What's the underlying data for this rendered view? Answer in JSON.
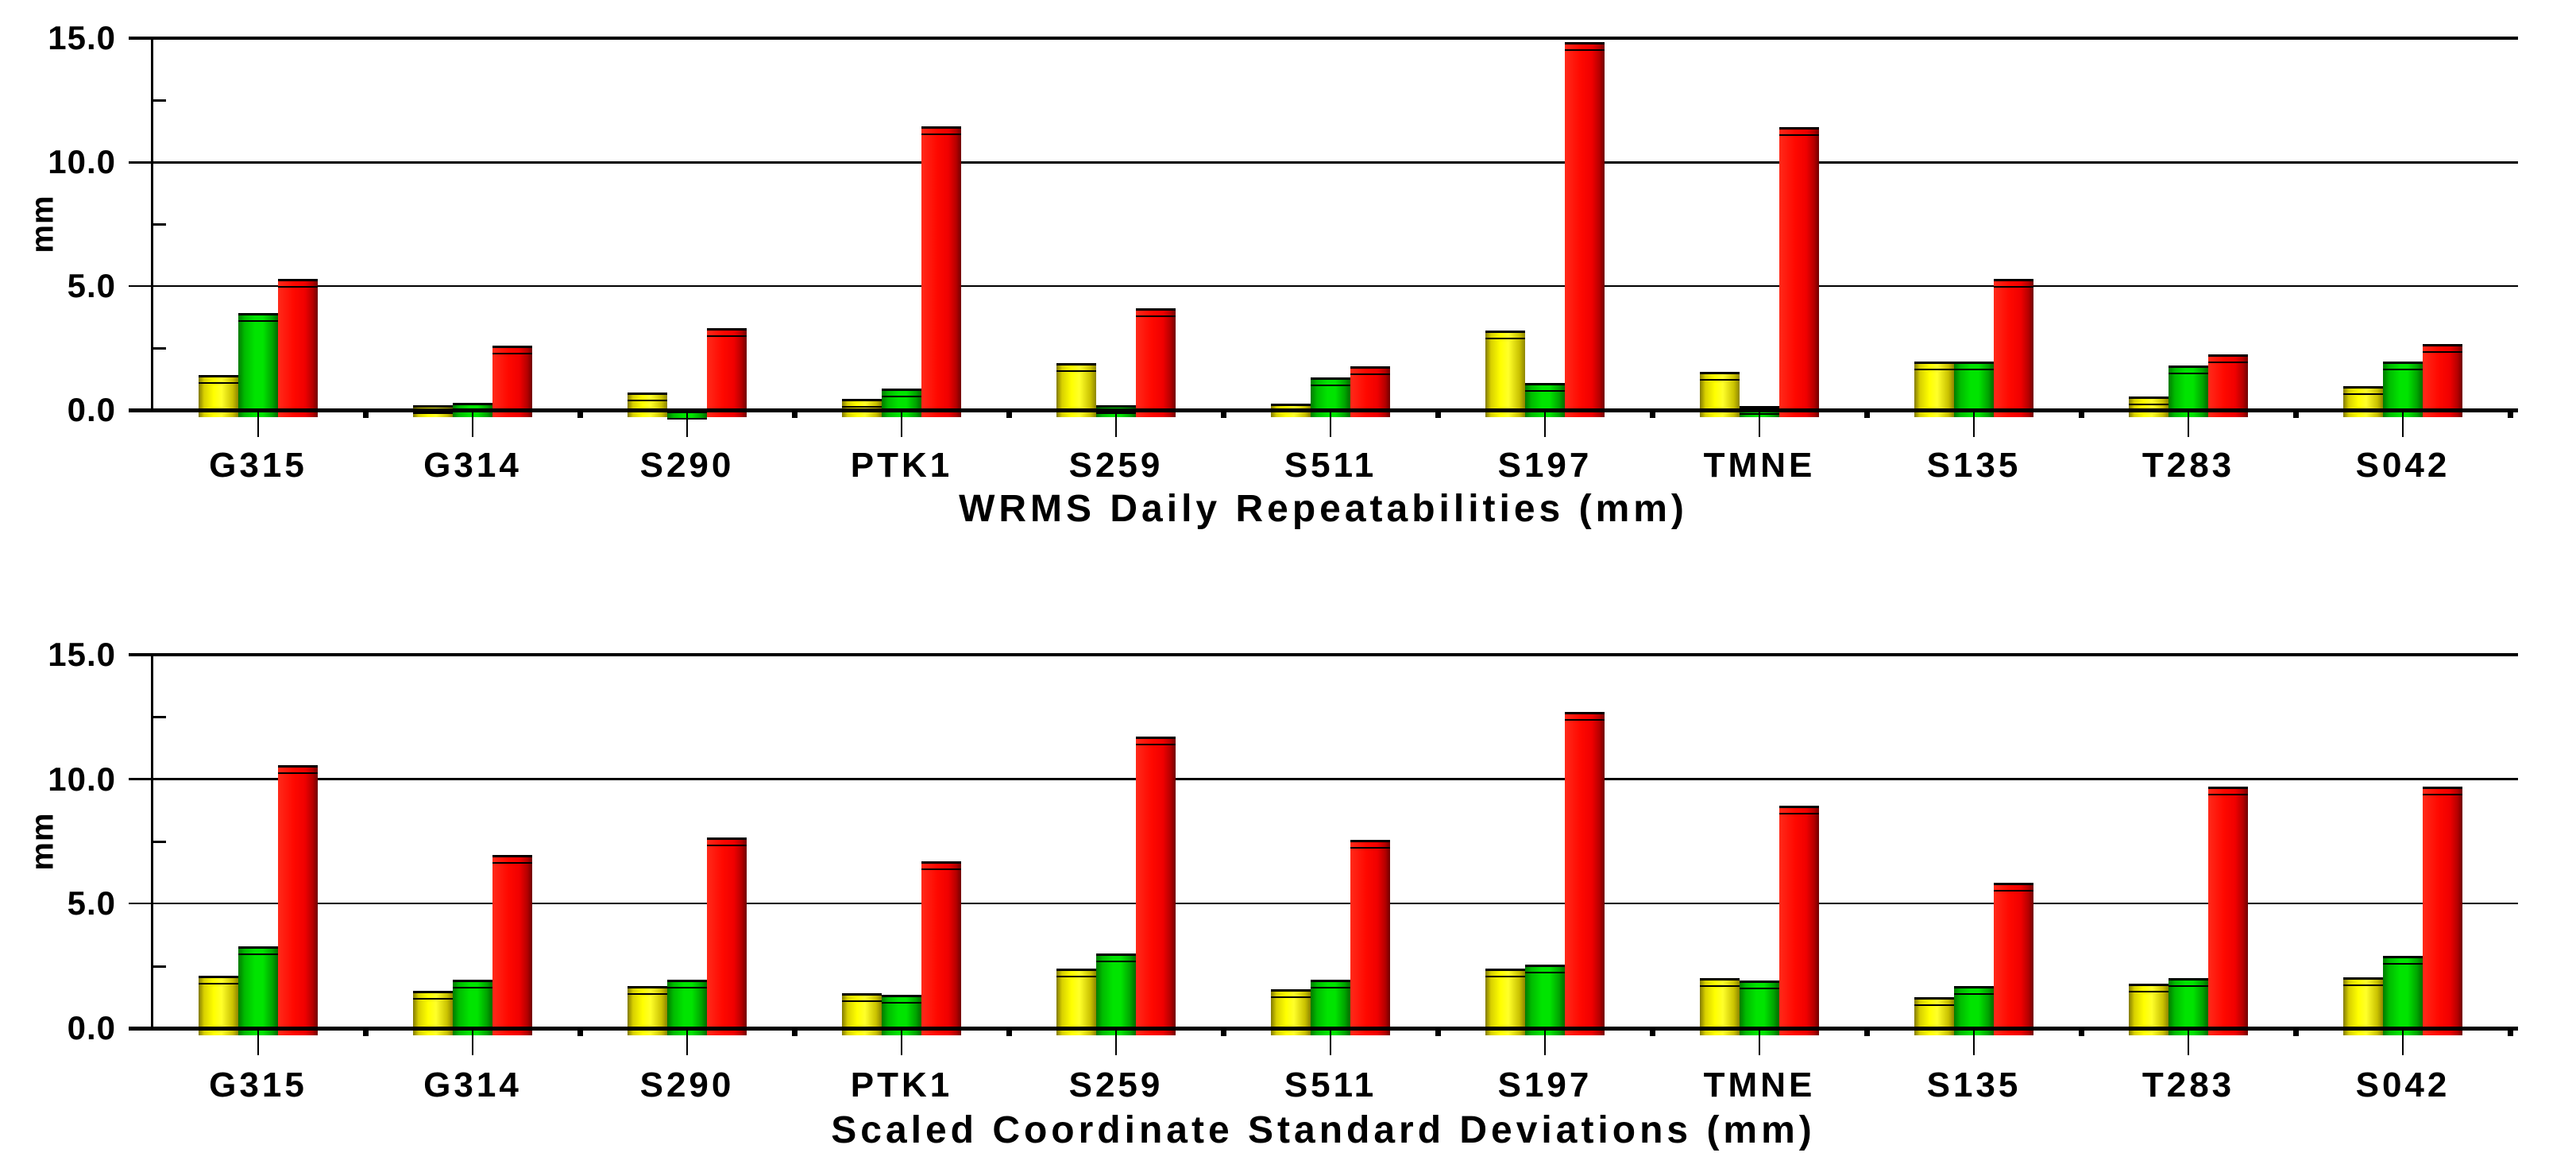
{
  "chart_data": [
    {
      "type": "bar",
      "title": "WRMS Daily Repeatabilities (mm)",
      "ylabel": "mm",
      "ylim": [
        0,
        15
      ],
      "ytick_values": [
        0,
        5,
        10,
        15
      ],
      "ytick_labels": [
        "0.0",
        "5.0",
        "10.0",
        "15.0"
      ],
      "minor_ytick_values": [
        2.5,
        7.5,
        12.5
      ],
      "grid": true,
      "legend_position": "none",
      "categories": [
        "G315",
        "G314",
        "S290",
        "PTK1",
        "S259",
        "S511",
        "S197",
        "TMNE",
        "S135",
        "T283",
        "S042"
      ],
      "series": [
        {
          "name": "yellow",
          "color": "#ffff00",
          "values": [
            1.4,
            0.2,
            0.7,
            0.45,
            1.9,
            0.25,
            3.2,
            1.55,
            1.95,
            0.55,
            0.95
          ]
        },
        {
          "name": "green",
          "color": "#00dd00",
          "values": [
            3.9,
            0.3,
            -0.1,
            0.85,
            0.2,
            1.3,
            1.1,
            0.15,
            1.95,
            1.8,
            1.95
          ]
        },
        {
          "name": "red",
          "color": "#ff0000",
          "values": [
            5.3,
            2.6,
            3.3,
            11.45,
            4.1,
            1.75,
            14.85,
            11.4,
            5.3,
            2.25,
            2.65
          ]
        }
      ]
    },
    {
      "type": "bar",
      "title": "Scaled Coordinate Standard Deviations (mm)",
      "ylabel": "mm",
      "ylim": [
        0,
        15
      ],
      "ytick_values": [
        0,
        5,
        10,
        15
      ],
      "ytick_labels": [
        "0.0",
        "5.0",
        "10.0",
        "15.0"
      ],
      "minor_ytick_values": [
        2.5,
        7.5,
        12.5
      ],
      "grid": true,
      "legend_position": "none",
      "categories": [
        "G315",
        "G314",
        "S290",
        "PTK1",
        "S259",
        "S511",
        "S197",
        "TMNE",
        "S135",
        "T283",
        "S042"
      ],
      "series": [
        {
          "name": "yellow",
          "color": "#ffff00",
          "values": [
            2.1,
            1.5,
            1.7,
            1.4,
            2.4,
            1.55,
            2.4,
            2.0,
            1.25,
            1.8,
            2.05
          ]
        },
        {
          "name": "green",
          "color": "#00dd00",
          "values": [
            3.3,
            1.95,
            1.95,
            1.35,
            3.0,
            1.95,
            2.55,
            1.9,
            1.7,
            2.0,
            2.9
          ]
        },
        {
          "name": "red",
          "color": "#ff0000",
          "values": [
            10.55,
            6.95,
            7.65,
            6.7,
            11.7,
            7.55,
            12.7,
            8.95,
            5.85,
            9.7,
            9.7
          ]
        }
      ]
    }
  ]
}
